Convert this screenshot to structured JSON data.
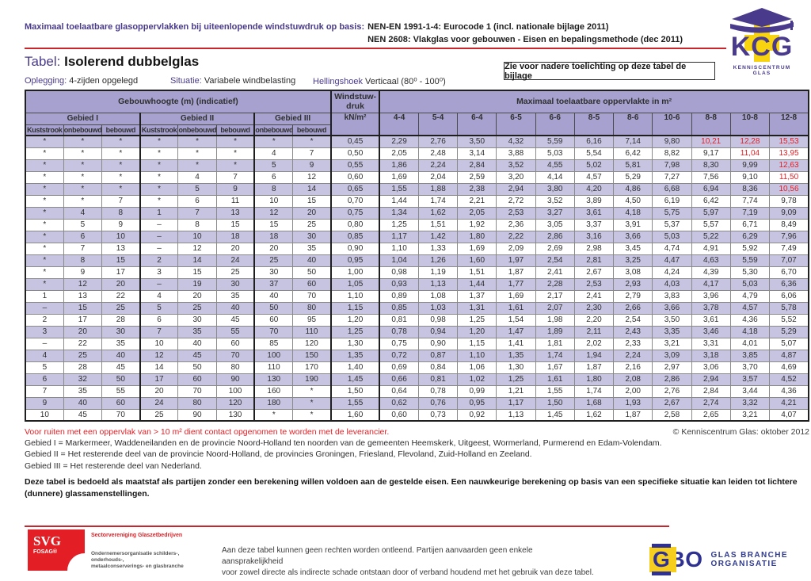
{
  "header": {
    "title_label": "Maximaal toelaatbare glasoppervlakken bij uiteenlopende windstuwdruk op basis:",
    "norm1": "NEN-EN 1991-1-4: Eurocode 1 (incl. nationale bijlage 2011)",
    "norm2": "NEN 2608: Vlakglas voor gebouwen - Eisen en bepalingsmethode (dec 2011)",
    "kcg_logo": {
      "letters": "KCG",
      "caption": "KENNISCENTRUM GLAS"
    }
  },
  "titlebar": {
    "tabel_label": "Tabel:",
    "tabel_title": "Isolerend dubbelglas",
    "oplegging_label": "Oplegging:",
    "oplegging_value": "4-zijden opgelegd",
    "situatie_label": "Situatie:",
    "situatie_value": "Variabele windbelasting",
    "hellingshoek_label": "Hellingshoek",
    "hellingshoek_value": "Verticaal (80⁰ - 100⁰)",
    "note_box": "Zie voor nadere toelichting op deze tabel de bijlage"
  },
  "table": {
    "col_group_title": "Gebouwhoogte (m) (indicatief)",
    "wind_line1": "Windstuw-",
    "wind_line2": "druk",
    "wind_unit": "kN/m²",
    "area_title": "Maximaal toelaatbare oppervlakte in m²",
    "groups": [
      {
        "name": "Gebied I",
        "cols": [
          "Kuststrook",
          "onbebouwd",
          "bebouwd"
        ]
      },
      {
        "name": "Gebied II",
        "cols": [
          "Kuststrook",
          "onbebouwd",
          "bebouwd"
        ]
      },
      {
        "name": "Gebied III",
        "cols": [
          "onbebouwd",
          "bebouwd"
        ]
      }
    ],
    "glass_cols": [
      "4-4",
      "5-4",
      "6-4",
      "6-5",
      "6-6",
      "8-5",
      "8-6",
      "10-6",
      "8-8",
      "10-8",
      "12-8"
    ],
    "rows": [
      {
        "h": [
          "*",
          "*",
          "*",
          "*",
          "*",
          "*",
          "*",
          "*"
        ],
        "kn": "0,45",
        "v": [
          "2,29",
          "2,76",
          "3,50",
          "4,32",
          "5,59",
          "6,16",
          "7,14",
          "9,80",
          "10,21",
          "12,28",
          "15,53"
        ],
        "red": [
          8,
          9,
          10
        ]
      },
      {
        "h": [
          "*",
          "*",
          "*",
          "*",
          "*",
          "*",
          "4",
          "7"
        ],
        "kn": "0,50",
        "v": [
          "2,05",
          "2,48",
          "3,14",
          "3,88",
          "5,03",
          "5,54",
          "6,42",
          "8,82",
          "9,17",
          "11,04",
          "13,95"
        ],
        "red": [
          9,
          10
        ]
      },
      {
        "h": [
          "*",
          "*",
          "*",
          "*",
          "*",
          "*",
          "5",
          "9"
        ],
        "kn": "0,55",
        "v": [
          "1,86",
          "2,24",
          "2,84",
          "3,52",
          "4,55",
          "5,02",
          "5,81",
          "7,98",
          "8,30",
          "9,99",
          "12,63"
        ],
        "red": [
          10
        ]
      },
      {
        "h": [
          "*",
          "*",
          "*",
          "*",
          "4",
          "7",
          "6",
          "12"
        ],
        "kn": "0,60",
        "v": [
          "1,69",
          "2,04",
          "2,59",
          "3,20",
          "4,14",
          "4,57",
          "5,29",
          "7,27",
          "7,56",
          "9,10",
          "11,50"
        ],
        "red": [
          10
        ]
      },
      {
        "h": [
          "*",
          "*",
          "*",
          "*",
          "5",
          "9",
          "8",
          "14"
        ],
        "kn": "0,65",
        "v": [
          "1,55",
          "1,88",
          "2,38",
          "2,94",
          "3,80",
          "4,20",
          "4,86",
          "6,68",
          "6,94",
          "8,36",
          "10,56"
        ],
        "red": [
          10
        ]
      },
      {
        "h": [
          "*",
          "*",
          "7",
          "*",
          "6",
          "11",
          "10",
          "15"
        ],
        "kn": "0,70",
        "v": [
          "1,44",
          "1,74",
          "2,21",
          "2,72",
          "3,52",
          "3,89",
          "4,50",
          "6,19",
          "6,42",
          "7,74",
          "9,78"
        ],
        "red": []
      },
      {
        "h": [
          "*",
          "4",
          "8",
          "1",
          "7",
          "13",
          "12",
          "20"
        ],
        "kn": "0,75",
        "v": [
          "1,34",
          "1,62",
          "2,05",
          "2,53",
          "3,27",
          "3,61",
          "4,18",
          "5,75",
          "5,97",
          "7,19",
          "9,09"
        ],
        "red": []
      },
      {
        "h": [
          "*",
          "5",
          "9",
          "–",
          "8",
          "15",
          "15",
          "25"
        ],
        "kn": "0,80",
        "v": [
          "1,25",
          "1,51",
          "1,92",
          "2,36",
          "3,05",
          "3,37",
          "3,91",
          "5,37",
          "5,57",
          "6,71",
          "8,49"
        ],
        "red": []
      },
      {
        "h": [
          "*",
          "6",
          "10",
          "–",
          "10",
          "18",
          "18",
          "30"
        ],
        "kn": "0,85",
        "v": [
          "1,17",
          "1,42",
          "1,80",
          "2,22",
          "2,86",
          "3,16",
          "3,66",
          "5,03",
          "5,22",
          "6,29",
          "7,96"
        ],
        "red": []
      },
      {
        "h": [
          "*",
          "7",
          "13",
          "–",
          "12",
          "20",
          "20",
          "35"
        ],
        "kn": "0,90",
        "v": [
          "1,10",
          "1,33",
          "1,69",
          "2,09",
          "2,69",
          "2,98",
          "3,45",
          "4,74",
          "4,91",
          "5,92",
          "7,49"
        ],
        "red": []
      },
      {
        "h": [
          "*",
          "8",
          "15",
          "2",
          "14",
          "24",
          "25",
          "40"
        ],
        "kn": "0,95",
        "v": [
          "1,04",
          "1,26",
          "1,60",
          "1,97",
          "2,54",
          "2,81",
          "3,25",
          "4,47",
          "4,63",
          "5,59",
          "7,07"
        ],
        "red": []
      },
      {
        "h": [
          "*",
          "9",
          "17",
          "3",
          "15",
          "25",
          "30",
          "50"
        ],
        "kn": "1,00",
        "v": [
          "0,98",
          "1,19",
          "1,51",
          "1,87",
          "2,41",
          "2,67",
          "3,08",
          "4,24",
          "4,39",
          "5,30",
          "6,70"
        ],
        "red": []
      },
      {
        "h": [
          "*",
          "12",
          "20",
          "–",
          "19",
          "30",
          "37",
          "60"
        ],
        "kn": "1,05",
        "v": [
          "0,93",
          "1,13",
          "1,44",
          "1,77",
          "2,28",
          "2,53",
          "2,93",
          "4,03",
          "4,17",
          "5,03",
          "6,36"
        ],
        "red": []
      },
      {
        "h": [
          "1",
          "13",
          "22",
          "4",
          "20",
          "35",
          "40",
          "70"
        ],
        "kn": "1,10",
        "v": [
          "0,89",
          "1,08",
          "1,37",
          "1,69",
          "2,17",
          "2,41",
          "2,79",
          "3,83",
          "3,96",
          "4,79",
          "6,06"
        ],
        "red": []
      },
      {
        "h": [
          "–",
          "15",
          "25",
          "5",
          "25",
          "40",
          "50",
          "80"
        ],
        "kn": "1,15",
        "v": [
          "0,85",
          "1,03",
          "1,31",
          "1,61",
          "2,07",
          "2,30",
          "2,66",
          "3,66",
          "3,78",
          "4,57",
          "5,78"
        ],
        "red": []
      },
      {
        "h": [
          "2",
          "17",
          "28",
          "6",
          "30",
          "45",
          "60",
          "95"
        ],
        "kn": "1,20",
        "v": [
          "0,81",
          "0,98",
          "1,25",
          "1,54",
          "1,98",
          "2,20",
          "2,54",
          "3,50",
          "3,61",
          "4,36",
          "5,52"
        ],
        "red": []
      },
      {
        "h": [
          "3",
          "20",
          "30",
          "7",
          "35",
          "55",
          "70",
          "110"
        ],
        "kn": "1,25",
        "v": [
          "0,78",
          "0,94",
          "1,20",
          "1,47",
          "1,89",
          "2,11",
          "2,43",
          "3,35",
          "3,46",
          "4,18",
          "5,29"
        ],
        "red": []
      },
      {
        "h": [
          "–",
          "22",
          "35",
          "10",
          "40",
          "60",
          "85",
          "120"
        ],
        "kn": "1,30",
        "v": [
          "0,75",
          "0,90",
          "1,15",
          "1,41",
          "1,81",
          "2,02",
          "2,33",
          "3,21",
          "3,31",
          "4,01",
          "5,07"
        ],
        "red": []
      },
      {
        "h": [
          "4",
          "25",
          "40",
          "12",
          "45",
          "70",
          "100",
          "150"
        ],
        "kn": "1,35",
        "v": [
          "0,72",
          "0,87",
          "1,10",
          "1,35",
          "1,74",
          "1,94",
          "2,24",
          "3,09",
          "3,18",
          "3,85",
          "4,87"
        ],
        "red": []
      },
      {
        "h": [
          "5",
          "28",
          "45",
          "14",
          "50",
          "80",
          "110",
          "170"
        ],
        "kn": "1,40",
        "v": [
          "0,69",
          "0,84",
          "1,06",
          "1,30",
          "1,67",
          "1,87",
          "2,16",
          "2,97",
          "3,06",
          "3,70",
          "4,69"
        ],
        "red": []
      },
      {
        "h": [
          "6",
          "32",
          "50",
          "17",
          "60",
          "90",
          "130",
          "190"
        ],
        "kn": "1,45",
        "v": [
          "0,66",
          "0,81",
          "1,02",
          "1,25",
          "1,61",
          "1,80",
          "2,08",
          "2,86",
          "2,94",
          "3,57",
          "4,52"
        ],
        "red": []
      },
      {
        "h": [
          "7",
          "35",
          "55",
          "20",
          "70",
          "100",
          "160",
          "*"
        ],
        "kn": "1,50",
        "v": [
          "0,64",
          "0,78",
          "0,99",
          "1,21",
          "1,55",
          "1,74",
          "2,00",
          "2,76",
          "2,84",
          "3,44",
          "4,36"
        ],
        "red": []
      },
      {
        "h": [
          "9",
          "40",
          "60",
          "24",
          "80",
          "120",
          "180",
          "*"
        ],
        "kn": "1,55",
        "v": [
          "0,62",
          "0,76",
          "0,95",
          "1,17",
          "1,50",
          "1,68",
          "1,93",
          "2,67",
          "2,74",
          "3,32",
          "4,21"
        ],
        "red": []
      },
      {
        "h": [
          "10",
          "45",
          "70",
          "25",
          "90",
          "130",
          "*",
          "*"
        ],
        "kn": "1,60",
        "v": [
          "0,60",
          "0,73",
          "0,92",
          "1,13",
          "1,45",
          "1,62",
          "1,87",
          "2,58",
          "2,65",
          "3,21",
          "4,07"
        ],
        "red": []
      }
    ]
  },
  "footnotes": {
    "red_note": "Voor ruiten met een oppervlak van > 10 m² dient contact opgenomen te worden met de leverancier.",
    "copyright": "© Kenniscentrum Glas: oktober 2012",
    "gebied1": "Gebied I = Markermeer, Waddeneilanden en de provincie Noord-Holland ten noorden van de gemeenten Heemskerk, Uitgeest, Wormerland, Purmerend en Edam-Volendam.",
    "gebied2": "Gebied II = Het resterende deel van de provincie Noord-Holland, de provincies Groningen, Friesland, Flevoland, Zuid-Holland en Zeeland.",
    "gebied3": "Gebied III = Het resterende deel van Nederland.",
    "bold_para": "Deze tabel is bedoeld als maatstaf als partijen zonder een berekening willen voldoen aan de gestelde eisen. Een nauwkeurige berekening op basis van een specifieke situatie kan leiden tot lichtere (dunnere) glassamenstellingen."
  },
  "bottom": {
    "svg_logo": {
      "big": "SVG",
      "sub": "FOSAG®",
      "tagline": "Sectorvereniging Glaszetbedrijven",
      "desc1": "Ondernemersorganisatie schilders-, onderhouds-,",
      "desc2": "metaalconserverings- en glasbranche"
    },
    "disclaimer1": "Aan deze tabel kunnen geen rechten worden ontleend. Partijen aanvaarden geen enkele aansprakelijkheid",
    "disclaimer2": "voor zowel directe als indirecte schade ontstaan door of verband houdend met het gebruik van deze tabel.",
    "gbo_logo": {
      "g": "G",
      "bo": "BO",
      "caption": "GLAS BRANCHE ORGANISATIE"
    }
  },
  "colors": {
    "purple_text": "#4a3a8c",
    "red_accent": "#e31e24",
    "header_bg": "#a6a1ce",
    "stripe_bg": "#c7c4e2"
  }
}
